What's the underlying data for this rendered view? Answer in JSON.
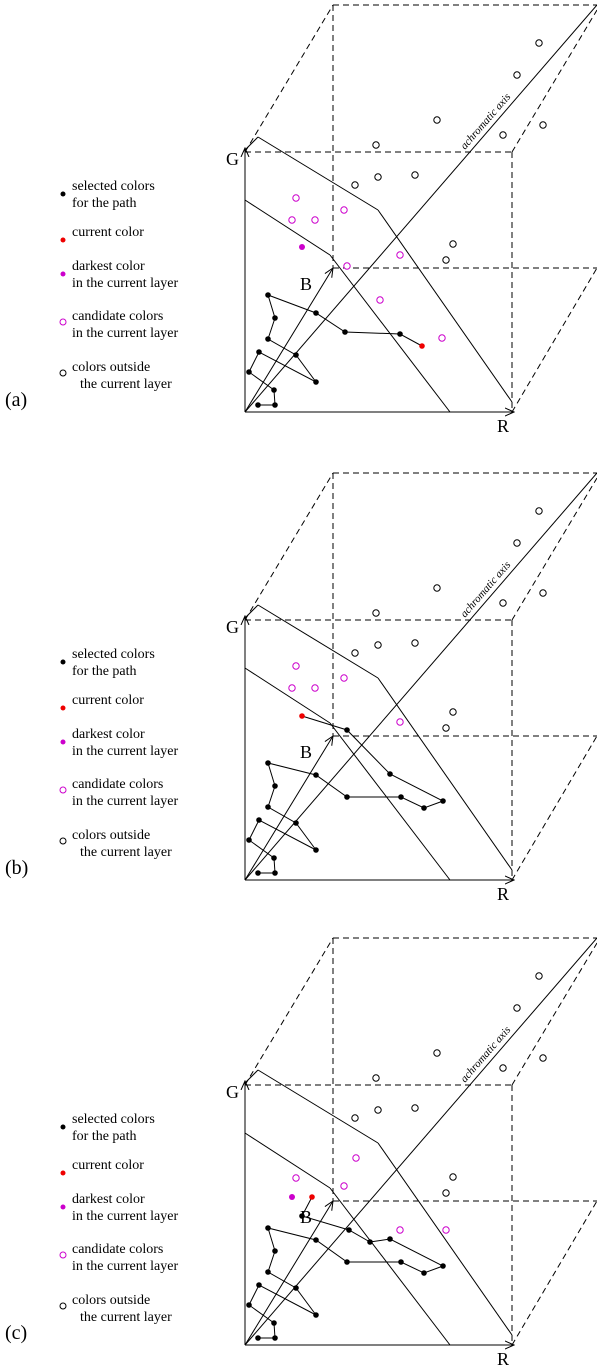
{
  "panels": [
    {
      "label": "(a)",
      "axes": {
        "g": "G",
        "r": "R",
        "b": "B",
        "achromatic": "achromatic axis"
      },
      "legend": [
        {
          "lines": [
            "selected colors",
            "for the path"
          ]
        },
        {
          "lines": [
            "current color"
          ]
        },
        {
          "lines": [
            "darkest color",
            "in the current layer"
          ]
        },
        {
          "lines": [
            "candidate colors",
            "in the current layer"
          ]
        },
        {
          "lines": [
            "colors outside",
            "the current layer"
          ]
        }
      ]
    },
    {
      "label": "(b)",
      "axes": {
        "g": "G",
        "r": "R",
        "b": "B",
        "achromatic": "achromatic axis"
      },
      "legend": [
        {
          "lines": [
            "selected colors",
            "for the path"
          ]
        },
        {
          "lines": [
            "current color"
          ]
        },
        {
          "lines": [
            "darkest color",
            "in the current layer"
          ]
        },
        {
          "lines": [
            "candidate colors",
            "in the current layer"
          ]
        },
        {
          "lines": [
            "colors outside",
            "the current layer"
          ]
        }
      ]
    },
    {
      "label": "(c)",
      "axes": {
        "g": "G",
        "r": "R",
        "b": "B",
        "achromatic": "achromatic axis"
      },
      "legend": [
        {
          "lines": [
            "selected colors",
            "for the path"
          ]
        },
        {
          "lines": [
            "current color"
          ]
        },
        {
          "lines": [
            "darkest color",
            "in the current layer"
          ]
        },
        {
          "lines": [
            "candidate colors",
            "in the current layer"
          ]
        },
        {
          "lines": [
            "colors outside",
            "the current layer"
          ]
        }
      ]
    }
  ]
}
